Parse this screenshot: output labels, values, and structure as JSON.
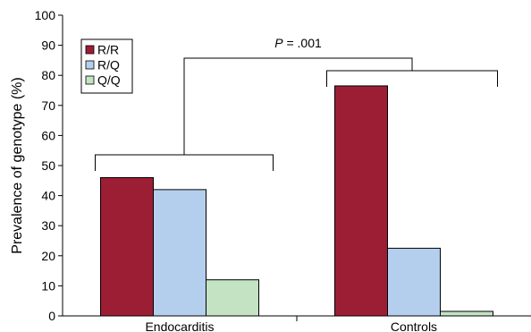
{
  "chart_data": {
    "type": "bar",
    "categories": [
      "Endocarditis",
      "Controls"
    ],
    "series": [
      {
        "name": "R/R",
        "values": [
          46,
          76.5
        ],
        "color": "#9B1E35"
      },
      {
        "name": "R/Q",
        "values": [
          42,
          22.5
        ],
        "color": "#B4CFEE"
      },
      {
        "name": "Q/Q",
        "values": [
          12,
          1.5
        ],
        "color": "#C3E3C3"
      }
    ],
    "ylabel": "Prevalence of genotype (%)",
    "xlabel": "",
    "ylim": [
      0,
      100
    ],
    "yticks": [
      0,
      10,
      20,
      30,
      40,
      50,
      60,
      70,
      80,
      90,
      100
    ],
    "grid": false,
    "legend": "top-left",
    "annotation": {
      "label_italic": "P",
      "label_rest": " = .001"
    }
  }
}
